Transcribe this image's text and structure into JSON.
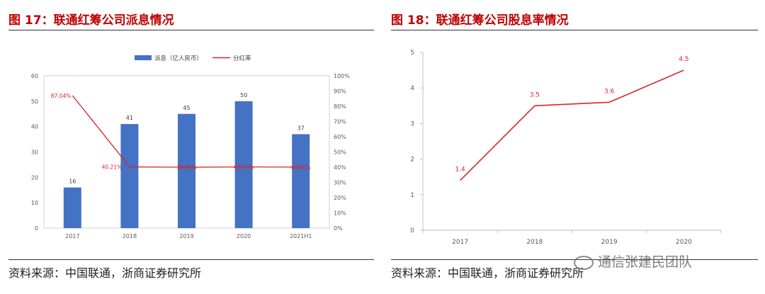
{
  "watermark": "通信张建民团队",
  "colors": {
    "title_red": "#c00000",
    "bar_blue": "#4472c4",
    "line_red": "#d9262c"
  },
  "left": {
    "title": "图 17：联通红筹公司派息情况",
    "source": "资料来源：中国联通，浙商证券研究所"
  },
  "right": {
    "title": "图 18：联通红筹公司股息率情况",
    "source": "资料来源：中国联通，浙商证券研究所"
  },
  "chart_data": [
    {
      "type": "bar",
      "categories": [
        "2017",
        "2018",
        "2019",
        "2020",
        "2021H1"
      ],
      "series": [
        {
          "name": "派息（亿人民币）",
          "kind": "bar",
          "axis": "left",
          "values": [
            16,
            41,
            45,
            50,
            37
          ],
          "labels": [
            "16",
            "41",
            "45",
            "50",
            "37"
          ]
        },
        {
          "name": "分红率",
          "kind": "line",
          "axis": "right",
          "values": [
            87.04,
            40.21,
            39.97,
            40.17,
            40.06
          ],
          "labels": [
            "87.04%",
            "40.21%",
            "39.97%",
            "40.17%",
            "40.06%"
          ]
        }
      ],
      "ylim": [
        0,
        60
      ],
      "yticks": [
        "0",
        "10",
        "20",
        "30",
        "40",
        "50",
        "60"
      ],
      "y2lim": [
        0,
        100
      ],
      "y2ticks": [
        "0%",
        "10%",
        "20%",
        "30%",
        "40%",
        "50%",
        "60%",
        "70%",
        "80%",
        "90%",
        "100%"
      ],
      "legend": "top-center",
      "grid": false
    },
    {
      "type": "line",
      "categories": [
        "2017",
        "2018",
        "2019",
        "2020"
      ],
      "series": [
        {
          "values": [
            1.4,
            3.5,
            3.6,
            4.5
          ],
          "labels": [
            "1.4",
            "3.5",
            "3.6",
            "4.5"
          ]
        }
      ],
      "ylim": [
        0,
        5
      ],
      "yticks": [
        "0",
        "1",
        "2",
        "3",
        "4",
        "5"
      ],
      "grid": false
    }
  ]
}
